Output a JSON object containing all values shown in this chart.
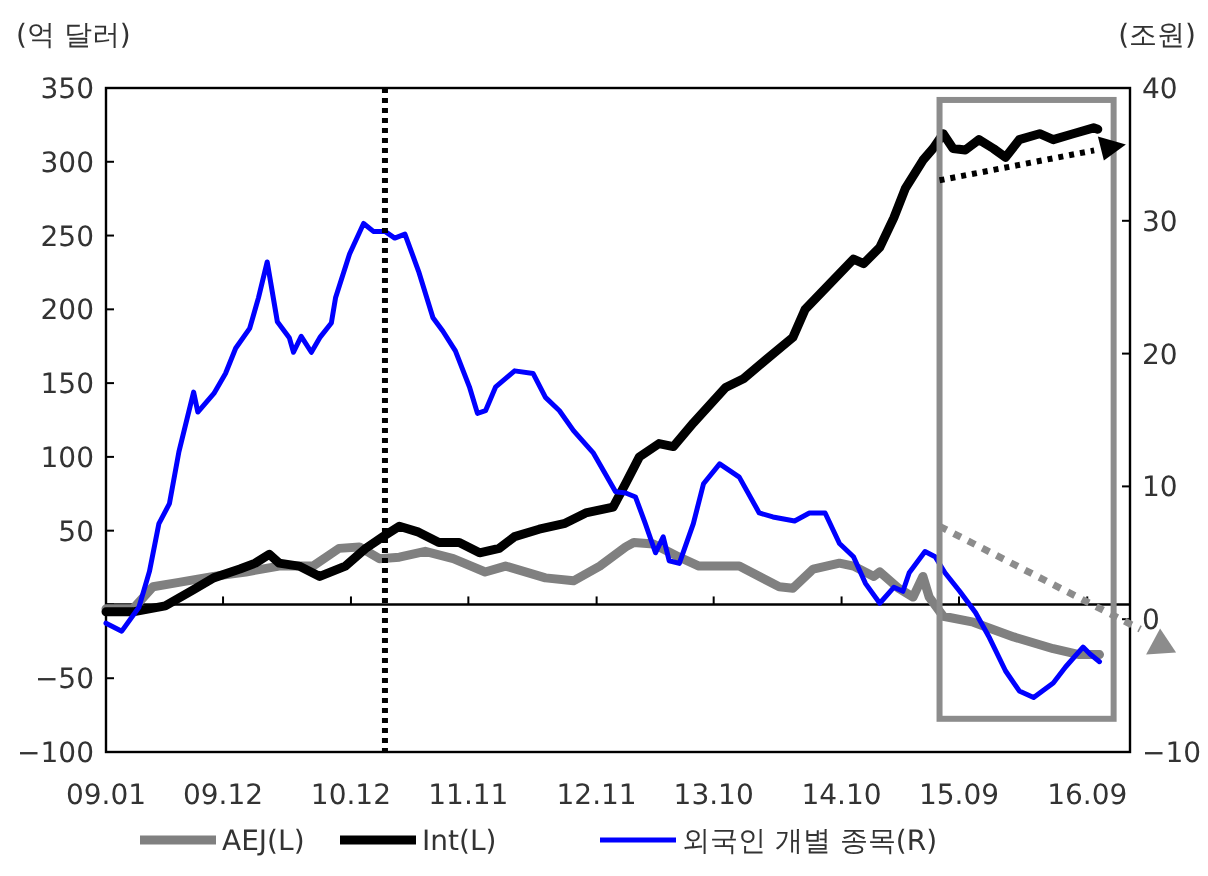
{
  "chart_data": {
    "type": "line",
    "ylabel": "(억 달러)",
    "y2label": "(조원)",
    "xlim": [
      "2009-01-01",
      "2017-01-01"
    ],
    "xticks": [
      {
        "value": "2009-01-01",
        "label": "09.01"
      },
      {
        "value": "2009-12-01",
        "label": "09.12"
      },
      {
        "value": "2010-12-01",
        "label": "10.12"
      },
      {
        "value": "2011-11-01",
        "label": "11.11"
      },
      {
        "value": "2012-11-01",
        "label": "12.11"
      },
      {
        "value": "2013-10-01",
        "label": "13.10"
      },
      {
        "value": "2014-10-01",
        "label": "14.10"
      },
      {
        "value": "2015-09-01",
        "label": "15.09"
      },
      {
        "value": "2016-09-01",
        "label": "16.09"
      }
    ],
    "ylim": [
      -100,
      350
    ],
    "yticks": [
      {
        "value": -100,
        "label": "−100"
      },
      {
        "value": -50,
        "label": "−50"
      },
      {
        "value": 0,
        "label": null
      },
      50,
      100,
      150,
      200,
      250,
      300,
      350
    ],
    "y2lim": [
      -10,
      40
    ],
    "y2ticks": [
      {
        "value": -10,
        "label": "−10"
      },
      0,
      10,
      20,
      30,
      40
    ],
    "legend": "bottom",
    "marker": "none",
    "ref_lines": [
      {
        "axis": "x",
        "value": "2011-03-08",
        "color": "#000000",
        "line_style": "dotted"
      }
    ],
    "series": [
      {
        "name": "AEJ(L)",
        "color": "#808080",
        "x": [
          "2009-01-01",
          "2009-03-19",
          "2009-05-15",
          "2009-07-28",
          "2009-11-04",
          "2010-02-04",
          "2010-05-10",
          "2010-08-15",
          "2010-10-28",
          "2010-12-25",
          "2011-02-20",
          "2011-04-18",
          "2011-07-01",
          "2011-09-19",
          "2011-12-19",
          "2012-02-15",
          "2012-06-08",
          "2012-08-27",
          "2012-11-10",
          "2013-01-23",
          "2013-02-15",
          "2013-04-12",
          "2013-06-25",
          "2013-08-20",
          "2013-12-13",
          "2014-04-06",
          "2014-05-15",
          "2014-07-12",
          "2014-09-25",
          "2014-11-04",
          "2015-01-01",
          "2015-01-18",
          "2015-03-12",
          "2015-04-23",
          "2015-05-21",
          "2015-06-08",
          "2015-07-18",
          "2015-10-12",
          "2016-02-04",
          "2016-05-27",
          "2016-08-09",
          "2016-10-06"
        ],
        "values": [
          -3,
          -3,
          12,
          15,
          19,
          22,
          26,
          26,
          38,
          39,
          31,
          32,
          36,
          31,
          22,
          26,
          18,
          16,
          26,
          39,
          42,
          41,
          32,
          26,
          26,
          12,
          11,
          24,
          28,
          26,
          19,
          22,
          11,
          5,
          19,
          5,
          -8,
          -12,
          -22,
          -30,
          -34,
          -34
        ]
      },
      {
        "name": "Int(L)",
        "color": "#000000",
        "x": [
          "2009-01-01",
          "2009-03-19",
          "2009-06-19",
          "2009-09-08",
          "2009-11-04",
          "2010-01-18",
          "2010-03-03",
          "2010-04-12",
          "2010-05-10",
          "2010-07-06",
          "2010-09-03",
          "2010-11-15",
          "2011-01-12",
          "2011-03-03",
          "2011-04-18",
          "2011-06-12",
          "2011-08-09",
          "2011-10-06",
          "2011-12-03",
          "2012-01-28",
          "2012-03-12",
          "2012-05-21",
          "2012-08-03",
          "2012-10-01",
          "2012-12-18",
          "2013-01-23",
          "2013-03-03",
          "2013-04-28",
          "2013-06-08",
          "2013-08-04",
          "2013-11-04",
          "2013-12-25",
          "2014-02-28",
          "2014-05-15",
          "2014-06-19",
          "2014-09-08",
          "2014-11-04",
          "2014-12-03",
          "2015-01-18",
          "2015-02-27",
          "2015-04-01",
          "2015-05-21",
          "2015-06-19",
          "2015-07-18",
          "2015-08-15",
          "2015-09-19",
          "2015-10-28",
          "2015-12-08",
          "2016-01-12",
          "2016-02-20",
          "2016-04-18",
          "2016-05-27",
          "2016-07-23",
          "2016-09-19",
          "2016-10-01"
        ],
        "values": [
          -5,
          -5,
          -1,
          10,
          18,
          24,
          28,
          34,
          28,
          26,
          19,
          26,
          38,
          46,
          53,
          49,
          42,
          42,
          35,
          38,
          46,
          51,
          55,
          62,
          66,
          82,
          100,
          109,
          107,
          123,
          147,
          153,
          166,
          181,
          200,
          220,
          234,
          231,
          242,
          262,
          282,
          301,
          309,
          319,
          309,
          308,
          315,
          309,
          303,
          315,
          319,
          315,
          319,
          323,
          322
        ]
      },
      {
        "name": "외국인 개별 종목(R)",
        "color": "#0000ff",
        "axis": "y2",
        "x": [
          "2009-01-01",
          "2009-02-15",
          "2009-04-05",
          "2009-05-05",
          "2009-06-01",
          "2009-07-01",
          "2009-07-28",
          "2009-09-08",
          "2009-09-20",
          "2009-11-05",
          "2009-12-08",
          "2010-01-06",
          "2010-02-15",
          "2010-03-12",
          "2010-04-06",
          "2010-05-05",
          "2010-06-08",
          "2010-06-20",
          "2010-07-12",
          "2010-08-10",
          "2010-09-03",
          "2010-10-06",
          "2010-10-18",
          "2010-11-27",
          "2011-01-06",
          "2011-02-03",
          "2011-03-08",
          "2011-04-05",
          "2011-05-04",
          "2011-06-12",
          "2011-07-23",
          "2011-08-20",
          "2011-09-25",
          "2011-11-04",
          "2011-11-27",
          "2011-12-20",
          "2012-01-18",
          "2012-03-12",
          "2012-05-04",
          "2012-06-08",
          "2012-07-18",
          "2012-08-27",
          "2012-10-23",
          "2012-12-25",
          "2013-01-23",
          "2013-02-20",
          "2013-03-20",
          "2013-04-18",
          "2013-05-10",
          "2013-05-27",
          "2013-06-25",
          "2013-08-04",
          "2013-09-02",
          "2013-10-18",
          "2013-12-13",
          "2014-02-08",
          "2014-03-19",
          "2014-05-20",
          "2014-07-01",
          "2014-08-15",
          "2014-09-25",
          "2014-11-04",
          "2014-12-08",
          "2015-01-18",
          "2015-02-27",
          "2015-03-25",
          "2015-04-12",
          "2015-05-27",
          "2015-06-25",
          "2015-07-23",
          "2015-09-03",
          "2015-10-18",
          "2015-11-27",
          "2016-01-12",
          "2016-02-20",
          "2016-04-01",
          "2016-05-27",
          "2016-07-01",
          "2016-08-20",
          "2016-09-08",
          "2016-10-06"
        ],
        "values": [
          -0.3,
          -0.9,
          0.9,
          3.6,
          7.2,
          8.7,
          12.6,
          17.1,
          15.6,
          17,
          18.5,
          20.4,
          21.9,
          24.2,
          26.9,
          22.4,
          21.2,
          20.1,
          21.3,
          20.1,
          21.2,
          22.3,
          24.2,
          27.5,
          29.8,
          29.2,
          29.2,
          28.7,
          29,
          26.2,
          22.7,
          21.7,
          20.2,
          17.5,
          15.5,
          15.7,
          17.5,
          18.7,
          18.5,
          16.7,
          15.7,
          14.2,
          12.5,
          9.6,
          9.5,
          9.2,
          7.2,
          5,
          6.2,
          4.4,
          4.2,
          7.2,
          10.2,
          11.7,
          10.7,
          8,
          7.7,
          7.4,
          8,
          8,
          5.7,
          4.7,
          2.7,
          1.2,
          2.4,
          2.1,
          3.5,
          5.1,
          4.7,
          3.5,
          2.1,
          0.5,
          -1.4,
          -3.9,
          -5.4,
          -5.9,
          -4.8,
          -3.6,
          -2.1,
          -2.6,
          -3.2
        ]
      }
    ]
  }
}
